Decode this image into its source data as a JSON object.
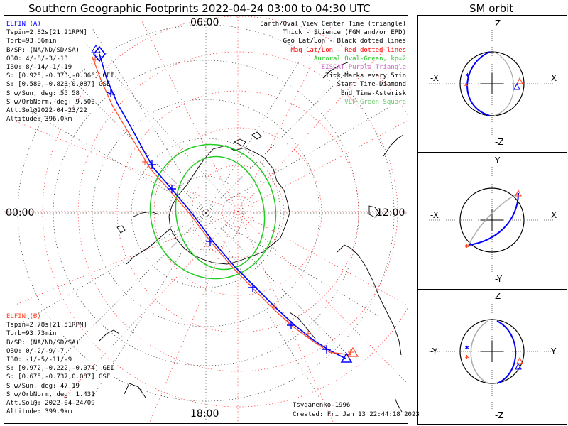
{
  "header": {
    "title": "Southern Geographic Footprints 2022-04-24 03:00 to 04:30 UTC",
    "sm_title": "SM orbit"
  },
  "map": {
    "time_labels": {
      "top": "06:00",
      "left": "00:00",
      "right": "12:00",
      "bottom": "18:00"
    }
  },
  "elfin_a": {
    "name": "ELFIN (A)",
    "lines": [
      "Tspin=2.82s[21.21RPM]",
      "Torb=93.86min",
      "B/SP: (NA/ND/SD/SA)",
      "OBO: 4/-8/-3/-13",
      "IBO: 8/-14/-1/-19",
      "S: [0.925,-0.373,-0.066] GEI",
      "S: [0.580,-0.823,0.087] GSE",
      "S w/Sun, deg: 55.58",
      "S w/OrbNorm, deg: 9.500",
      "Att.Sol@2022-04-23/22",
      "Altitude: 396.0km"
    ],
    "color": "#0000ff"
  },
  "elfin_b": {
    "name": "ELFIN (B)",
    "lines": [
      "Tspin=2.78s[21.51RPM]",
      "Torb=93.73min",
      "B/SP: (NA/ND/SD/SA)",
      "OBO: 0/-2/-9/-7",
      "IBO: -1/-5/-11/-9",
      "S: [0.972,-0.222,-0.074] GEI",
      "S: [0.675,-0.737,0.087] GSE",
      "S w/Sun, deg: 47.19",
      "S w/OrbNorm, deg: 1.431",
      "Att.Sol@: 2022-04-24/09",
      "Altitude: 399.9km"
    ],
    "color": "#ff4422"
  },
  "legend": {
    "lines": [
      {
        "text": "Earth/Oval View Center Time (triangle)",
        "color": "#000000"
      },
      {
        "text": "Thick - Science (FGM and/or EPD)",
        "color": "#000000"
      },
      {
        "text": "Geo Lat/Lon - Black dotted lines",
        "color": "#000000"
      },
      {
        "text": "Mag Lat/Lon - Red dotted lines",
        "color": "#ff0000"
      },
      {
        "text": "Auroral Oval-Green, kp=2",
        "color": "#22cc22"
      },
      {
        "text": "EISCAT-Purple Triangle",
        "color": "#cc66cc"
      },
      {
        "text": "Tick Marks every 5min",
        "color": "#000000"
      },
      {
        "text": "Start Time-Diamond",
        "color": "#000000"
      },
      {
        "text": "End Time-Asterisk",
        "color": "#000000"
      },
      {
        "text": "VLF-Green Square",
        "color": "#66cc66"
      }
    ]
  },
  "footer": {
    "model": "Tsyganenko-1996",
    "created": "Created: Fri Jan 13 22:44:18 2023"
  },
  "sm_panels": [
    {
      "top": "Z",
      "bottom": "-Z",
      "left": "-X",
      "right": "X"
    },
    {
      "top": "Y",
      "bottom": "-Y",
      "left": "-X",
      "right": "X"
    },
    {
      "top": "Z",
      "bottom": "-Z",
      "left": "-Y",
      "right": "Y"
    }
  ]
}
